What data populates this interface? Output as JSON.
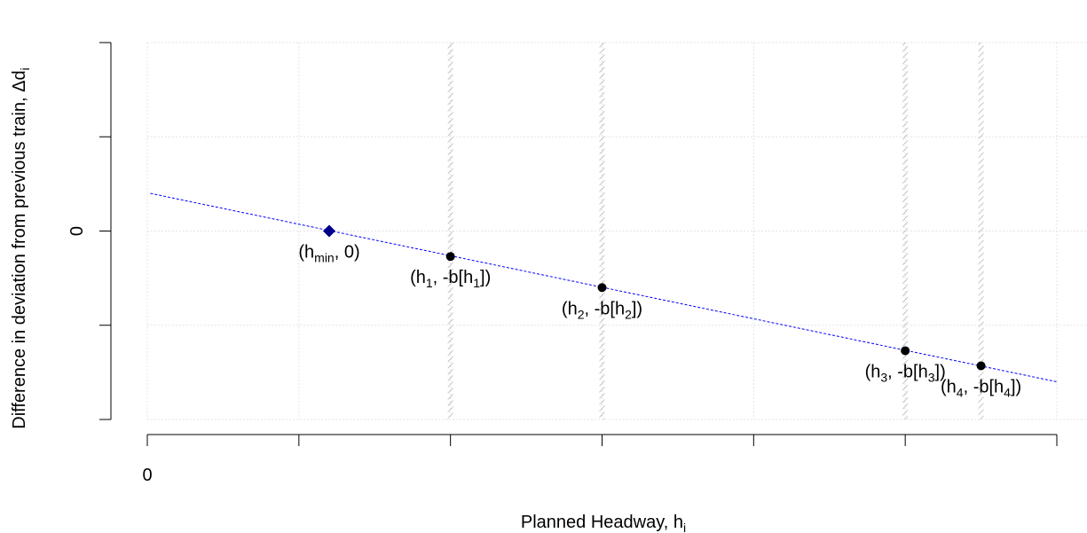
{
  "chart_data": {
    "type": "scatter",
    "title": "",
    "xlabel": {
      "main": "Planned Headway, h",
      "sub": "i"
    },
    "ylabel": {
      "main": "Difference in deviation from previous train,    Δd",
      "sub": "i"
    },
    "xlim": [
      0,
      6
    ],
    "ylim": [
      -2,
      2
    ],
    "x_ticks": [
      0,
      1,
      2,
      3,
      4,
      5,
      6
    ],
    "y_ticks": [
      -2,
      -1,
      0,
      1,
      2
    ],
    "x_tick_labels": [
      {
        "value": 0,
        "label": "0"
      }
    ],
    "y_tick_labels": [
      {
        "value": 0,
        "label": "0"
      }
    ],
    "grid": true,
    "line": {
      "x": [
        0.02,
        6.0
      ],
      "y": [
        0.4,
        -1.6
      ],
      "style": "dashed",
      "color": "#0000ff"
    },
    "shaded_verticals": [
      2.0,
      3.0,
      5.0,
      5.5
    ],
    "points": [
      {
        "x": 1.2,
        "y": 0.0,
        "marker": "diamond",
        "color": "#00008b",
        "label": {
          "parts": [
            {
              "t": "(h"
            },
            {
              "s": "min"
            },
            {
              "t": ", 0)"
            }
          ]
        }
      },
      {
        "x": 2.0,
        "y": -0.27,
        "marker": "circle",
        "color": "#000000",
        "label": {
          "parts": [
            {
              "t": "(h"
            },
            {
              "s": "1"
            },
            {
              "t": ", -b[h"
            },
            {
              "s": "1"
            },
            {
              "t": "])"
            }
          ]
        }
      },
      {
        "x": 3.0,
        "y": -0.6,
        "marker": "circle",
        "color": "#000000",
        "label": {
          "parts": [
            {
              "t": "(h"
            },
            {
              "s": "2"
            },
            {
              "t": ", -b[h"
            },
            {
              "s": "2"
            },
            {
              "t": "])"
            }
          ]
        }
      },
      {
        "x": 5.0,
        "y": -1.27,
        "marker": "circle",
        "color": "#000000",
        "label": {
          "parts": [
            {
              "t": "(h"
            },
            {
              "s": "3"
            },
            {
              "t": ", -b[h"
            },
            {
              "s": "3"
            },
            {
              "t": "])"
            }
          ]
        }
      },
      {
        "x": 5.5,
        "y": -1.43,
        "marker": "circle",
        "color": "#000000",
        "label": {
          "parts": [
            {
              "t": "(h"
            },
            {
              "s": "4"
            },
            {
              "t": ", -b[h"
            },
            {
              "s": "4"
            },
            {
              "t": "])"
            }
          ]
        }
      }
    ]
  }
}
